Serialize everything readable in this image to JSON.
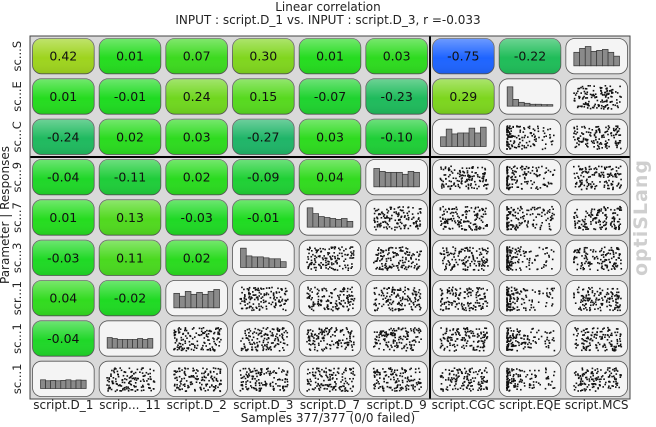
{
  "chart_data": {
    "type": "heatmap",
    "title": "Linear correlation",
    "subtitle": "INPUT : script.D_1 vs. INPUT : script.D_3, r =-0.033",
    "y_axis_label": "Parameter | Responses",
    "footer": "Samples 377/377 (0/0 failed)",
    "watermark": "optiSLang",
    "columns": [
      "script.D_1",
      "scrip..._11",
      "script.D_2",
      "script.D_3",
      "script.D_7",
      "script.D_9",
      "script.CGC",
      "script.EQE",
      "script.MCS"
    ],
    "rows": [
      "sc...S",
      "sc...E",
      "sc...C",
      "sc...9",
      "sc...7",
      "sc...3",
      "scr...1",
      "sc...1",
      "sc...1"
    ],
    "values": [
      [
        0.42,
        0.01,
        0.07,
        0.3,
        0.01,
        0.03,
        -0.75,
        -0.22,
        null
      ],
      [
        0.01,
        -0.01,
        0.24,
        0.15,
        -0.07,
        -0.23,
        0.29,
        null,
        null
      ],
      [
        -0.24,
        0.02,
        0.03,
        -0.27,
        0.03,
        -0.1,
        null,
        null,
        null
      ],
      [
        -0.04,
        -0.11,
        0.02,
        -0.09,
        0.04,
        null,
        null,
        null,
        null
      ],
      [
        0.01,
        0.13,
        -0.03,
        -0.01,
        null,
        null,
        null,
        null,
        null
      ],
      [
        -0.03,
        0.11,
        0.02,
        null,
        null,
        null,
        null,
        null,
        null
      ],
      [
        0.04,
        -0.02,
        null,
        null,
        null,
        null,
        null,
        null,
        null
      ],
      [
        -0.04,
        null,
        null,
        null,
        null,
        null,
        null,
        null,
        null
      ],
      [
        null,
        null,
        null,
        null,
        null,
        null,
        null,
        null,
        null
      ]
    ],
    "value_labels": [
      [
        "0.42",
        "0.01",
        "0.07",
        "0.30",
        "0.01",
        "0.03",
        "-0.75",
        "-0.22",
        null
      ],
      [
        "0.01",
        "-0.01",
        "0.24",
        "0.15",
        "-0.07",
        "-0.23",
        "0.29",
        null,
        null
      ],
      [
        "-0.24",
        "0.02",
        "0.03",
        "-0.27",
        "0.03",
        "-0.10",
        null,
        null,
        null
      ],
      [
        "-0.04",
        "-0.11",
        "0.02",
        "-0.09",
        "0.04",
        null,
        null,
        null,
        null
      ],
      [
        "0.01",
        "0.13",
        "-0.03",
        "-0.01",
        null,
        null,
        null,
        null,
        null
      ],
      [
        "-0.03",
        "0.11",
        "0.02",
        null,
        null,
        null,
        null,
        null,
        null
      ],
      [
        "0.04",
        "-0.02",
        null,
        null,
        null,
        null,
        null,
        null,
        null
      ],
      [
        "-0.04",
        null,
        null,
        null,
        null,
        null,
        null,
        null,
        null
      ],
      [
        null,
        null,
        null,
        null,
        null,
        null,
        null,
        null,
        null
      ]
    ],
    "histograms": {
      "script.D_1": [
        0.45,
        0.4,
        0.42,
        0.4,
        0.42,
        0.45,
        0.4,
        0.44,
        0.43
      ],
      "scrip..._11": [
        0.55,
        0.5,
        0.45,
        0.45,
        0.45,
        0.45,
        0.5,
        0.45,
        0.5
      ],
      "script.D_2": [
        0.75,
        0.6,
        0.85,
        0.7,
        0.8,
        0.7,
        0.85,
        0.95
      ],
      "script.D_3": [
        1.0,
        0.6,
        0.55,
        0.55,
        0.5,
        0.45,
        0.45,
        0.3
      ],
      "script.D_7": [
        1.0,
        0.7,
        0.55,
        0.5,
        0.45,
        0.4,
        0.45,
        0.3
      ],
      "script.D_9": [
        0.95,
        0.8,
        0.75,
        0.75,
        0.75,
        0.65,
        0.8,
        0.75
      ],
      "script.CGC": [
        0.5,
        0.9,
        0.65,
        0.7,
        0.7,
        0.95,
        0.7,
        1.0
      ],
      "script.EQE": [
        1.0,
        0.35,
        0.2,
        0.15,
        0.1,
        0.1,
        0.08,
        0.08
      ],
      "script.MCS": [
        0.7,
        0.9,
        1.0,
        0.75,
        0.8,
        0.85,
        0.7,
        0.5
      ]
    },
    "diagonal": "histogram",
    "lower_triangle": "scatter",
    "partitions_after_column": [
      6
    ],
    "partitions_after_row": [
      3
    ],
    "color_scale": {
      "negative": "#1e64ff",
      "zero": "#1fdc1f",
      "positive": "#c8d21e"
    }
  }
}
